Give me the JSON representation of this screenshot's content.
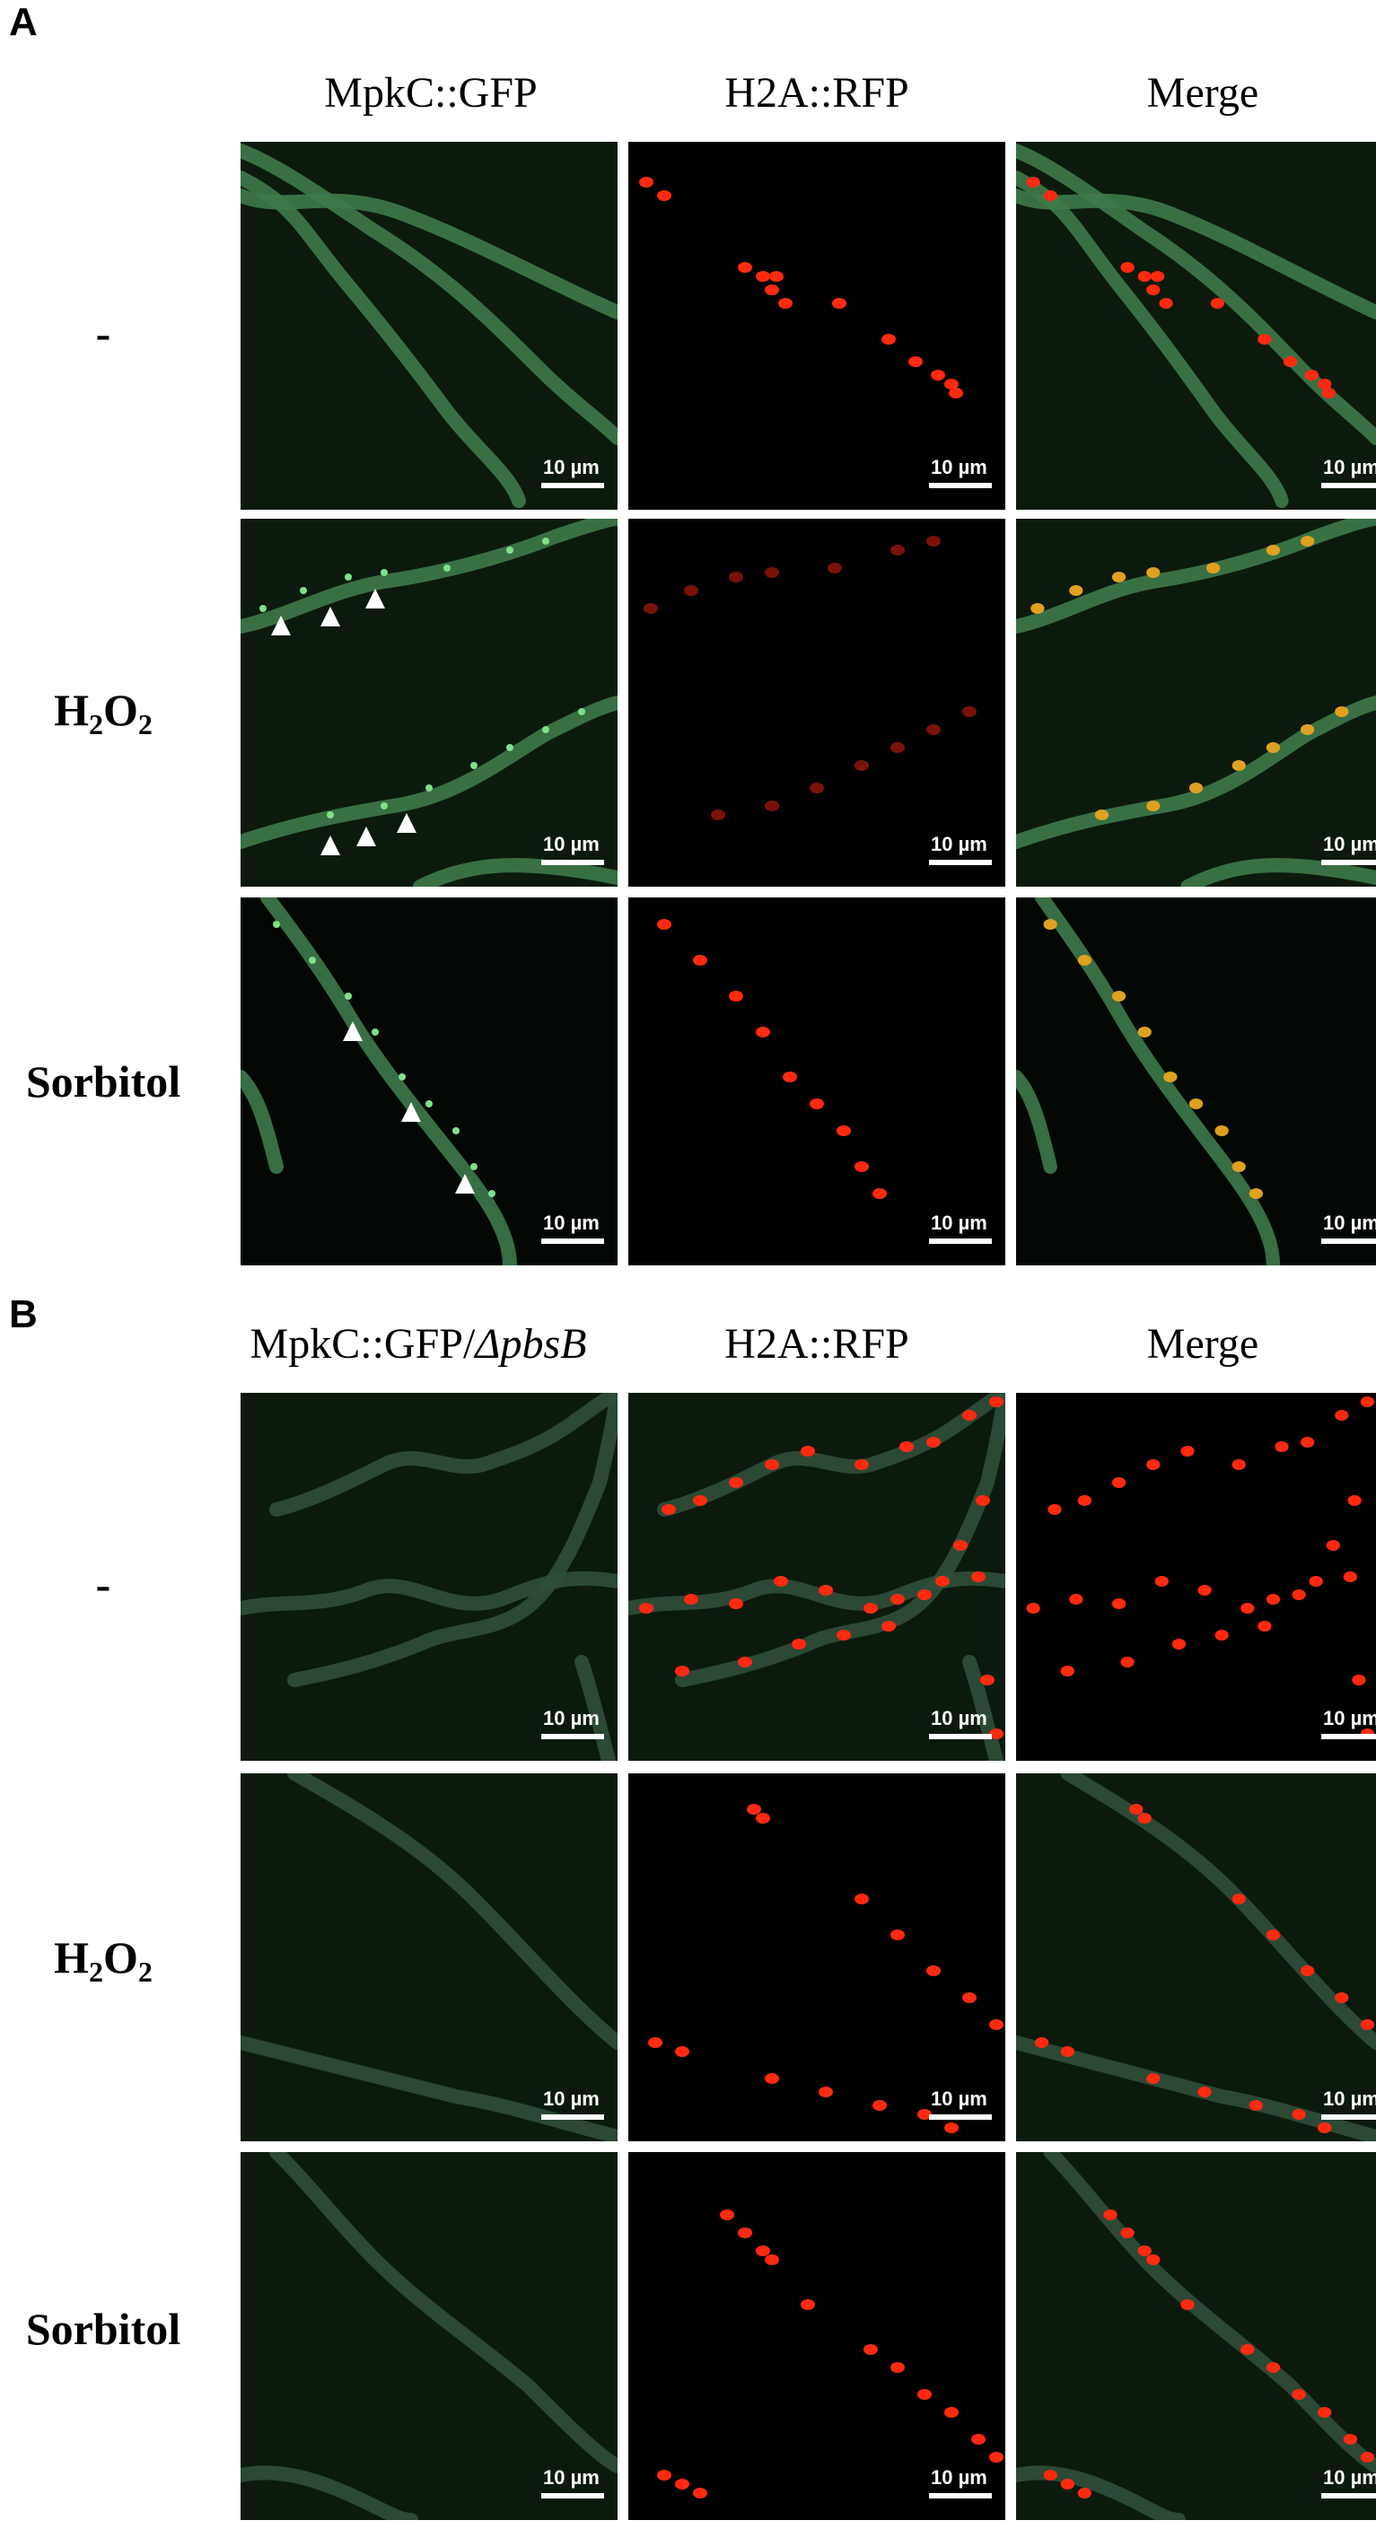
{
  "panels": [
    {
      "letter": "A",
      "columns": [
        {
          "text": "MpkC::GFP",
          "italic": ""
        },
        {
          "text": "H2A::RFP",
          "italic": ""
        },
        {
          "text": "Merge",
          "italic": ""
        }
      ],
      "rows": [
        {
          "label": "-",
          "is_h2o2": false
        },
        {
          "label": "H2O2",
          "is_h2o2": true
        },
        {
          "label": "Sorbitol",
          "is_h2o2": false
        }
      ]
    },
    {
      "letter": "B",
      "columns": [
        {
          "text": "MpkC::GFP/",
          "italic": "ΔpbsB"
        },
        {
          "text": "H2A::RFP",
          "italic": ""
        },
        {
          "text": "Merge",
          "italic": ""
        }
      ],
      "rows": [
        {
          "label": "-",
          "is_h2o2": false
        },
        {
          "label": "H2O2",
          "is_h2o2": true
        },
        {
          "label": "Sorbitol",
          "is_h2o2": false
        }
      ]
    }
  ],
  "scale_bar_label": "10 µm",
  "h2o2_parts": {
    "h": "H",
    "sub1": "2",
    "o": "O",
    "sub2": "2"
  },
  "colors": {
    "gfp": "#3d7a4a",
    "gfp_dim": "#2f4f3a",
    "rfp": "#ff2a10",
    "rfp_dim": "#7a1208",
    "arrow": "#ffffff",
    "background": "#000000"
  }
}
